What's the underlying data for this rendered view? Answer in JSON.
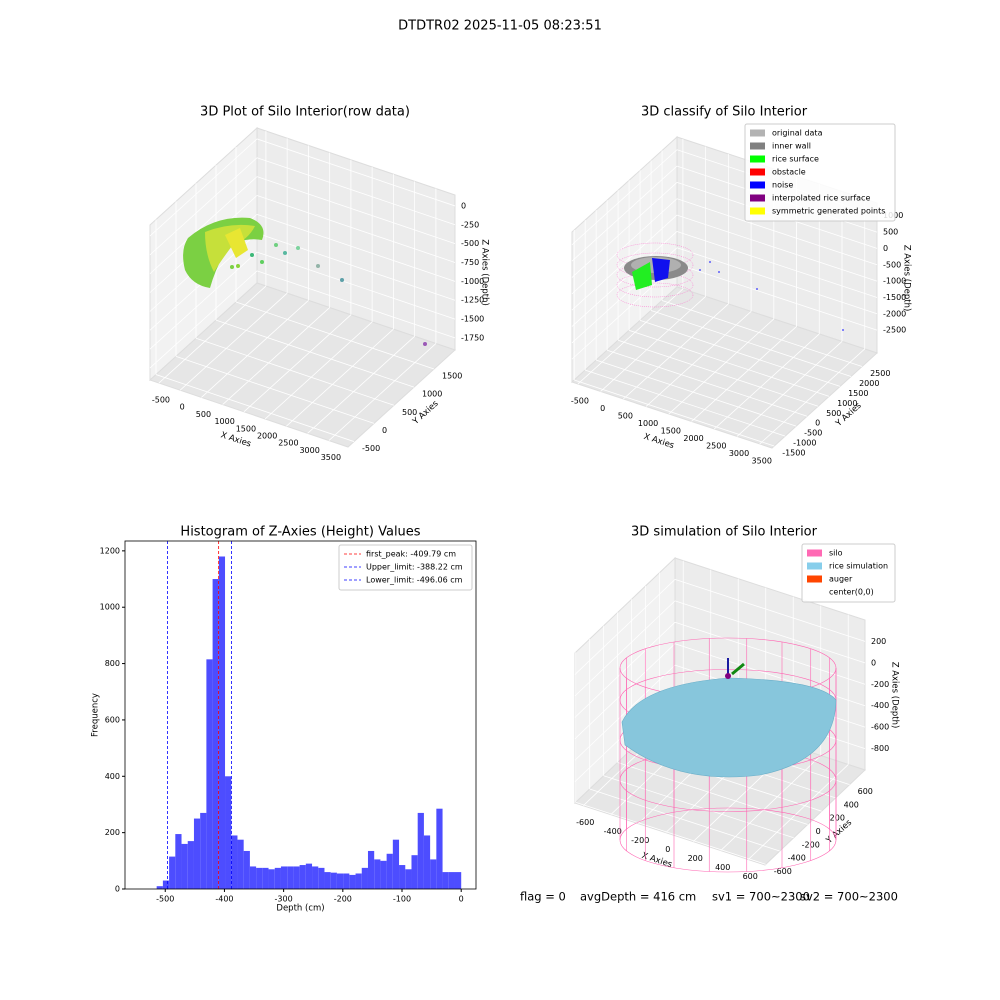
{
  "suptitle": "DTDTR02 2025-11-05 08:23:51",
  "footer": [
    "flag = 0",
    "avgDepth = 416 cm",
    "sv1 = 700~2300",
    "sv2 = 700~2300"
  ],
  "chart_data": [
    {
      "type": "scatter3d",
      "title": "3D Plot of Silo Interior(row data)",
      "xlabel": "X Axies",
      "ylabel": "Y Axies",
      "zlabel": "Z Axies (Depth)",
      "xlim": [
        -710,
        3950
      ],
      "ylim": [
        -650,
        2025
      ],
      "zlim": [
        -1910,
        145
      ],
      "xticks": [
        -500,
        0,
        500,
        1000,
        1500,
        2000,
        2500,
        3000,
        3500
      ],
      "yticks": [
        -500,
        0,
        500,
        1000,
        1500
      ],
      "zticks": [
        -1750,
        -1500,
        -1250,
        -1000,
        -750,
        -500,
        -250,
        0
      ]
    },
    {
      "type": "scatter3d",
      "title": "3D classify of Silo Interior",
      "xlabel": "X Axies",
      "ylabel": "Y Axies",
      "zlabel": "Z Axies (Depth)",
      "xlim": [
        -630,
        3770
      ],
      "ylim": [
        -1600,
        3180
      ],
      "zlim": [
        -3200,
        1390
      ],
      "xticks": [
        -500,
        0,
        500,
        1000,
        1500,
        2000,
        2500,
        3000,
        3500
      ],
      "yticks": [
        -1500,
        -1000,
        -500,
        0,
        500,
        1000,
        1500,
        2000,
        2500
      ],
      "zticks": [
        -2500,
        -2000,
        -1500,
        -1000,
        -500,
        0,
        500,
        1000
      ],
      "series": [
        {
          "name": "original data",
          "color": "#b3b3b3"
        },
        {
          "name": "inner wall",
          "color": "#808080"
        },
        {
          "name": "rice surface",
          "color": "#00ff00"
        },
        {
          "name": "obstacle",
          "color": "#ff0000"
        },
        {
          "name": "noise",
          "color": "#0000ff"
        },
        {
          "name": "interpolated rice surface",
          "color": "#800080"
        },
        {
          "name": "symmetric generated points",
          "color": "#ffff00"
        }
      ]
    },
    {
      "type": "histogram",
      "title": "Histogram of Z-Axies (Height) Values",
      "xlabel": "Depth (cm)",
      "ylabel": "Frequency",
      "color": "#4d4dff",
      "bins": [
        -514.5,
        -504,
        -493.5,
        -483,
        -472.5,
        -462,
        -451.5,
        -441,
        -430.5,
        -420,
        -409.5,
        -399,
        -388.5,
        -378,
        -367.5,
        -357,
        -346.5,
        -336,
        -325.5,
        -315,
        -304.5,
        -294,
        -283.5,
        -273,
        -262.5,
        -252,
        -241.5,
        -231,
        -220.5,
        -210,
        -199.5,
        -189,
        -178.5,
        -168,
        -157.5,
        -147,
        -136.5,
        -126,
        -115.5,
        -105,
        -94.5,
        -84,
        -73.5,
        -63,
        -52.5,
        -42,
        -31.5,
        -21,
        -10.5,
        0
      ],
      "values": [
        10,
        30,
        115,
        195,
        160,
        170,
        250,
        270,
        815,
        1100,
        1180,
        400,
        190,
        175,
        135,
        80,
        75,
        75,
        70,
        75,
        80,
        80,
        80,
        85,
        90,
        80,
        75,
        60,
        58,
        55,
        55,
        50,
        55,
        75,
        135,
        105,
        100,
        125,
        175,
        85,
        70,
        120,
        270,
        190,
        105,
        285,
        60,
        60,
        60
      ],
      "vlines": [
        {
          "name": "first_peak: -409.79 cm",
          "value": -409.79,
          "color": "#ff0000"
        },
        {
          "name": "Upper_limit: -388.22 cm",
          "value": -388.22,
          "color": "#0000ff"
        },
        {
          "name": "Lower_limit: -496.06 cm",
          "value": -496.06,
          "color": "#0000ff"
        }
      ],
      "xlim": [
        -568,
        25
      ],
      "ylim": [
        0,
        1235
      ],
      "xticks": [
        -500,
        -400,
        -300,
        -200,
        -100,
        0
      ],
      "yticks": [
        0,
        200,
        400,
        600,
        800,
        1000,
        1200
      ],
      "legend": "upper right"
    },
    {
      "type": "scatter3d",
      "title": "3D simulation of Silo Interior",
      "xlabel": "X Axies",
      "ylabel": "Y Axies",
      "zlabel": "Z Axies (Depth)",
      "xlim": [
        -660,
        722
      ],
      "ylim": [
        -610,
        820
      ],
      "zlim": [
        -1000,
        400
      ],
      "xticks": [
        -600,
        -400,
        -200,
        0,
        200,
        400,
        600
      ],
      "yticks": [
        -600,
        -400,
        -200,
        0,
        200,
        400,
        600
      ],
      "zticks": [
        -800,
        -600,
        -400,
        -200,
        0,
        200
      ],
      "series": [
        {
          "name": "silo",
          "color": "#ff69b4"
        },
        {
          "name": "rice simulation",
          "color": "#87ceeb"
        },
        {
          "name": "auger",
          "color": "#ff4500"
        },
        {
          "name": "center(0,0)",
          "color": "#ffffff"
        }
      ]
    }
  ]
}
